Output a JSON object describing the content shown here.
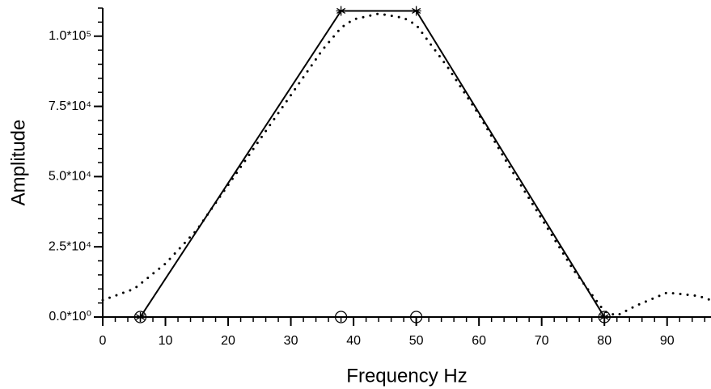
{
  "chart_data": {
    "type": "line",
    "xlabel": "Frequency Hz",
    "ylabel": "Amplitude",
    "xlim": [
      0,
      97
    ],
    "ylim": [
      0,
      110000
    ],
    "xticks": [
      0,
      10,
      20,
      30,
      40,
      50,
      60,
      70,
      80,
      90
    ],
    "yticks": [
      {
        "value": 0,
        "label": "0.0*10⁰"
      },
      {
        "value": 25000,
        "label": "2.5*10⁴"
      },
      {
        "value": 50000,
        "label": "5.0*10⁴"
      },
      {
        "value": 75000,
        "label": "7.5*10⁴"
      },
      {
        "value": 100000,
        "label": "1.0*10⁵"
      }
    ],
    "grid": false,
    "series": [
      {
        "color": "#000000",
        "style": "solid",
        "marker": "asterisk",
        "x": [
          6,
          38,
          50,
          80
        ],
        "values": [
          0,
          109000,
          109000,
          0
        ]
      },
      {
        "color": "#000000",
        "style": "dotted",
        "marker": "none",
        "x": [
          0,
          5,
          10,
          15,
          20,
          25,
          30,
          35,
          38,
          40,
          44,
          48,
          50,
          55,
          60,
          65,
          70,
          75,
          80,
          82,
          85,
          90,
          95,
          97
        ],
        "values": [
          6000,
          10000,
          19000,
          31000,
          47000,
          63000,
          79000,
          95000,
          103000,
          106000,
          108000,
          106500,
          104000,
          89000,
          72000,
          53000,
          35000,
          17000,
          2000,
          500,
          4000,
          8700,
          7500,
          6000
        ]
      },
      {
        "color": "#000000",
        "style": "none",
        "marker": "circle",
        "x": [
          6,
          38,
          50,
          80
        ],
        "values": [
          0,
          0,
          0,
          0
        ]
      }
    ]
  }
}
